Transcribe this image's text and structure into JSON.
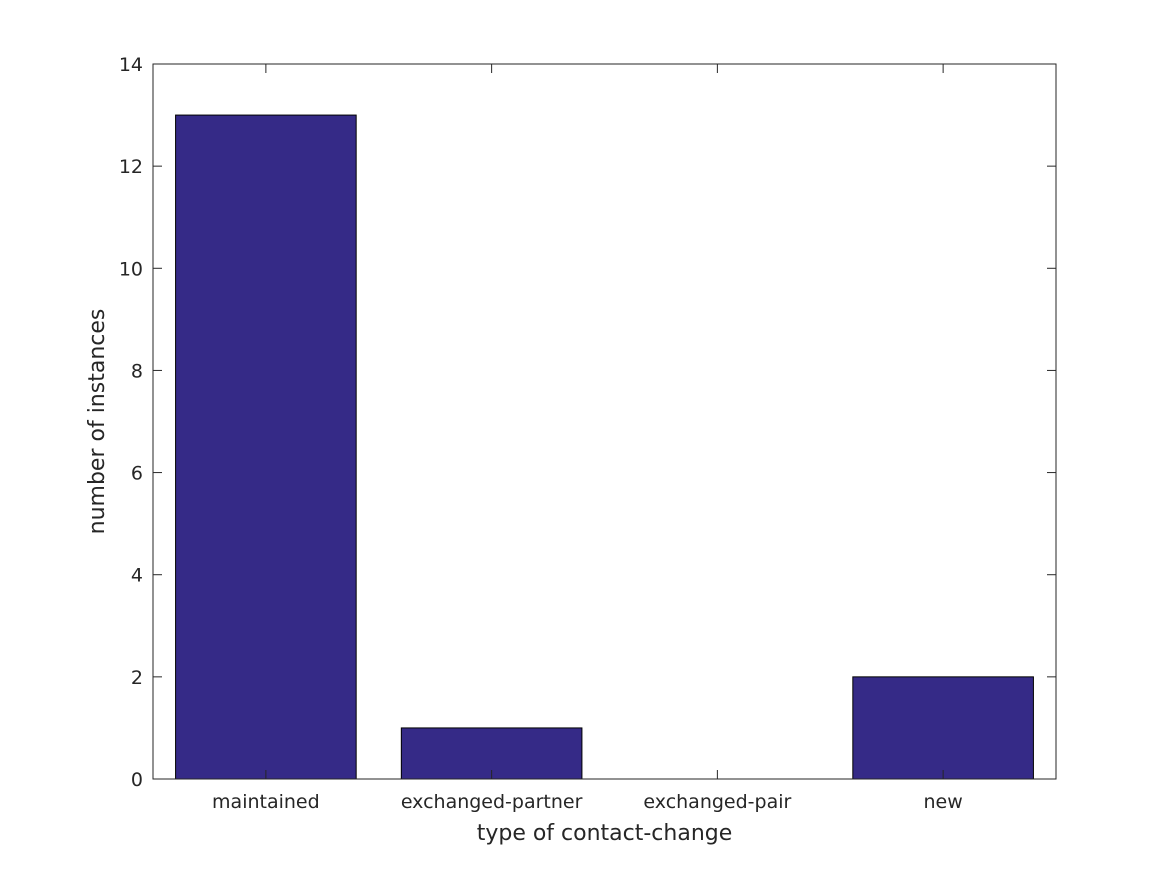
{
  "chart_data": {
    "type": "bar",
    "categories": [
      "maintained",
      "exchanged-partner",
      "exchanged-pair",
      "new"
    ],
    "values": [
      13,
      1,
      0,
      2
    ],
    "title": "",
    "xlabel": "type of contact-change",
    "ylabel": "number of instances",
    "ylim": [
      0,
      14
    ],
    "yticks": [
      0,
      2,
      4,
      6,
      8,
      10,
      12,
      14
    ],
    "grid": false,
    "legend": "none",
    "colors": {
      "bar_fill": "#352a87",
      "bar_edge": "#000000",
      "axis": "#262626",
      "background": "#ffffff"
    }
  }
}
